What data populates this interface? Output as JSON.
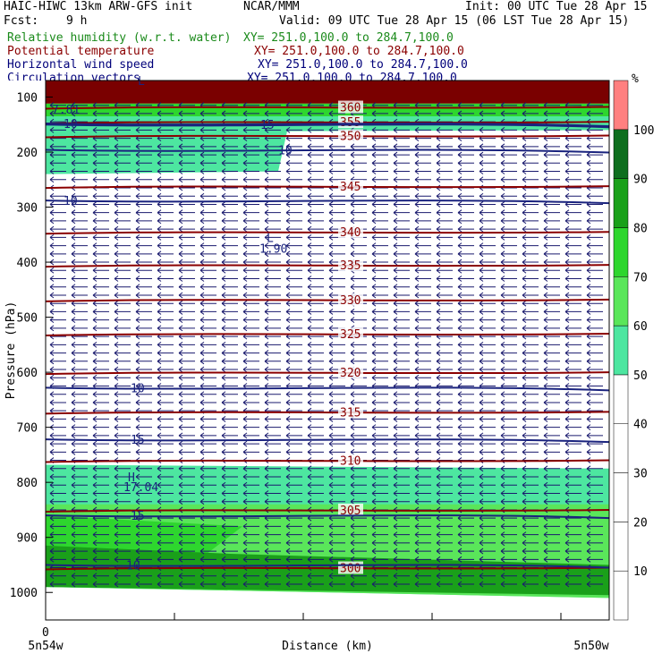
{
  "header": {
    "model": "HAIC-HIWC 13km ARW-GFS init",
    "org": "NCAR/MMM",
    "init": "Init: 00 UTC Tue 28 Apr 15",
    "fcst_label": "Fcst:",
    "fcst_value": "9 h",
    "valid": "Valid: 09 UTC Tue 28 Apr 15 (06 LST Tue 28 Apr 15)"
  },
  "legend": [
    {
      "name": "Relative humidity (w.r.t. water)",
      "xy": "XY= 251.0,100.0 to 284.7,100.0",
      "color": "#1a8a1a"
    },
    {
      "name": "Potential temperature",
      "xy": "XY= 251.0,100.0 to 284.7,100.0",
      "color": "#8b0000"
    },
    {
      "name": "Horizontal wind speed",
      "xy": "XY= 251.0,100.0 to 284.7,100.0",
      "color": "#00007a"
    },
    {
      "name": "Circulation vectors",
      "xy": "XY= 251.0,100.0 to 284.7,100.0",
      "color": "#00007a"
    }
  ],
  "chart_data": {
    "type": "heatmap",
    "ylabel": "Pressure (hPa)",
    "xlabel": "Distance (km)",
    "x_left_label": "5n54w",
    "x_right_label": "5n50w",
    "x_zero_label": "0",
    "y_ticks": [
      100,
      200,
      300,
      400,
      500,
      600,
      700,
      800,
      900,
      1000
    ],
    "ylim": [
      1050,
      70
    ],
    "colorbar": {
      "unit": "%",
      "levels": [
        10,
        20,
        30,
        40,
        50,
        60,
        70,
        80,
        90,
        100
      ],
      "colors": [
        "#ffffff",
        "#ffffff",
        "#ffffff",
        "#ffffff",
        "#ffffff",
        "#4de6a0",
        "#5ae65a",
        "#2ed62e",
        "#1aa01a",
        "#0e6e1e",
        "#ff8080"
      ]
    },
    "theta_contours": [
      {
        "label": "360",
        "p": 118
      },
      {
        "label": "355",
        "p": 145
      },
      {
        "label": "350",
        "p": 170
      },
      {
        "label": "345",
        "p": 262
      },
      {
        "label": "340",
        "p": 345
      },
      {
        "label": "335",
        "p": 405
      },
      {
        "label": "330",
        "p": 468
      },
      {
        "label": "325",
        "p": 530
      },
      {
        "label": "320",
        "p": 600
      },
      {
        "label": "315",
        "p": 672
      },
      {
        "label": "310",
        "p": 760
      },
      {
        "label": "305",
        "p": 850
      },
      {
        "label": "300",
        "p": 955
      }
    ],
    "wind_contours": [
      {
        "label": "15",
        "p": 150
      },
      {
        "label": "10",
        "p": 148
      },
      {
        "label": "10",
        "p": 196
      },
      {
        "label": "10",
        "p": 288
      },
      {
        "label": "10",
        "p": 628
      },
      {
        "label": "15",
        "p": 722
      },
      {
        "label": "15",
        "p": 860
      },
      {
        "label": "10",
        "p": 950
      }
    ],
    "annotations": [
      {
        "text": "L",
        "p": 70
      },
      {
        "text": "7.81",
        "p": 122
      },
      {
        "text": "L",
        "p": 355
      },
      {
        "text": "1.90",
        "p": 375
      },
      {
        "text": "H",
        "p": 790
      },
      {
        "text": "17.04",
        "p": 808
      }
    ]
  }
}
